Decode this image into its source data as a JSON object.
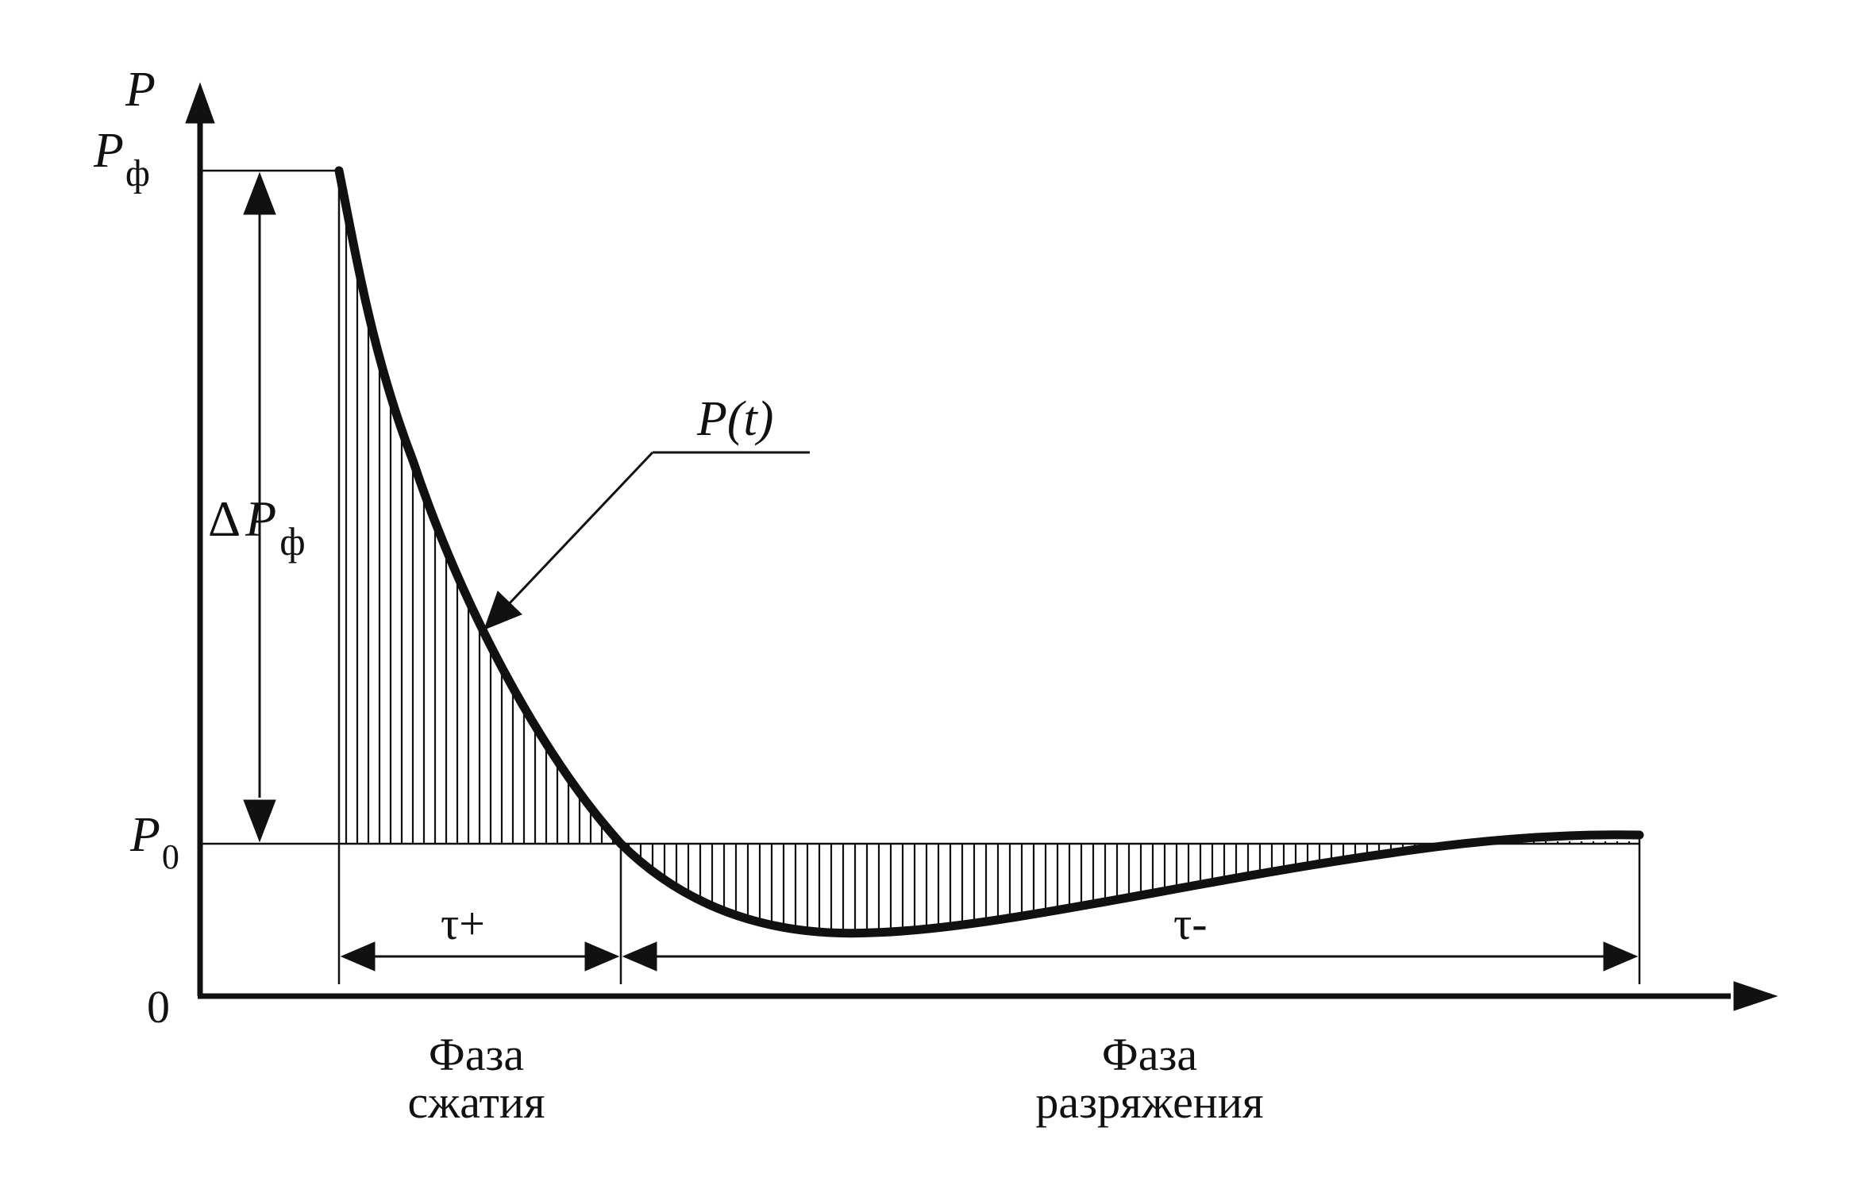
{
  "axis": {
    "y_label": "P",
    "origin_label": "0"
  },
  "levels": {
    "pf_main": "P",
    "pf_sub": "ф",
    "p0_main": "P",
    "p0_sub": "0"
  },
  "amplitude": {
    "delta": "Δ",
    "main": "P",
    "sub": "ф"
  },
  "curve_label": "P(t)",
  "durations": {
    "positive": "τ+",
    "negative": "τ-"
  },
  "phases": {
    "compression_line1": "Фаза",
    "compression_line2": "сжатия",
    "rarefaction_line1": "Фаза",
    "rarefaction_line2": "разряжения"
  },
  "colors": {
    "ink": "#111111",
    "background": "#ffffff"
  }
}
